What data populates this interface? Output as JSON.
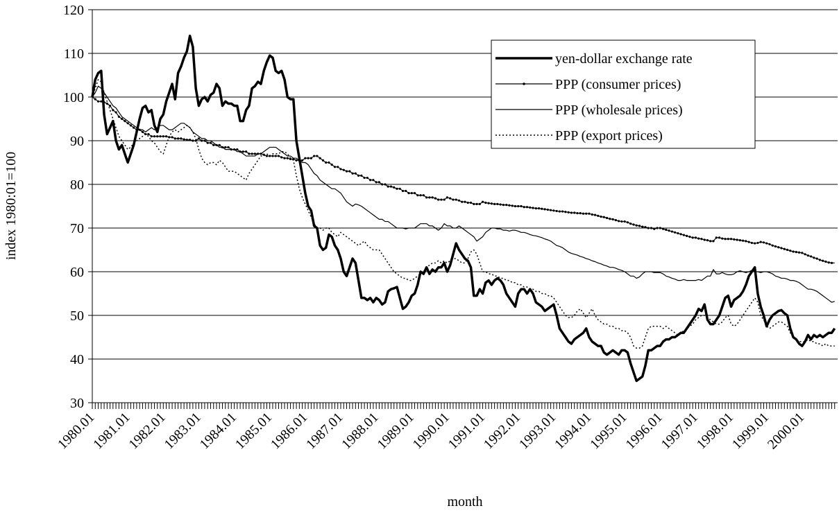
{
  "chart_data": {
    "type": "line",
    "y_label": "index 1980:01=100",
    "x_label": "month",
    "ylim": [
      30,
      120
    ],
    "yticks": [
      30,
      40,
      50,
      60,
      70,
      80,
      90,
      100,
      110,
      120
    ],
    "grid": true,
    "legend": "upper right",
    "categories": [
      "1980.01",
      null,
      null,
      null,
      null,
      null,
      null,
      null,
      null,
      null,
      null,
      null,
      "1981.01",
      null,
      null,
      null,
      null,
      null,
      null,
      null,
      null,
      null,
      null,
      null,
      "1982.01",
      null,
      null,
      null,
      null,
      null,
      null,
      null,
      null,
      null,
      null,
      null,
      "1983.01",
      null,
      null,
      null,
      null,
      null,
      null,
      null,
      null,
      null,
      null,
      null,
      "1984.01",
      null,
      null,
      null,
      null,
      null,
      null,
      null,
      null,
      null,
      null,
      null,
      "1985.01",
      null,
      null,
      null,
      null,
      null,
      null,
      null,
      null,
      null,
      null,
      null,
      "1986.01",
      null,
      null,
      null,
      null,
      null,
      null,
      null,
      null,
      null,
      null,
      null,
      "1987.01",
      null,
      null,
      null,
      null,
      null,
      null,
      null,
      null,
      null,
      null,
      null,
      "1988.01",
      null,
      null,
      null,
      null,
      null,
      null,
      null,
      null,
      null,
      null,
      null,
      "1989.01",
      null,
      null,
      null,
      null,
      null,
      null,
      null,
      null,
      null,
      null,
      null,
      "1990.01",
      null,
      null,
      null,
      null,
      null,
      null,
      null,
      null,
      null,
      null,
      null,
      "1991.01",
      null,
      null,
      null,
      null,
      null,
      null,
      null,
      null,
      null,
      null,
      null,
      "1992.01",
      null,
      null,
      null,
      null,
      null,
      null,
      null,
      null,
      null,
      null,
      null,
      "1993.01",
      null,
      null,
      null,
      null,
      null,
      null,
      null,
      null,
      null,
      null,
      null,
      "1994.01",
      null,
      null,
      null,
      null,
      null,
      null,
      null,
      null,
      null,
      null,
      null,
      "1995.01",
      null,
      null,
      null,
      null,
      null,
      null,
      null,
      null,
      null,
      null,
      null,
      "1996.01",
      null,
      null,
      null,
      null,
      null,
      null,
      null,
      null,
      null,
      null,
      null,
      "1997.01",
      null,
      null,
      null,
      null,
      null,
      null,
      null,
      null,
      null,
      null,
      null,
      "1998.01",
      null,
      null,
      null,
      null,
      null,
      null,
      null,
      null,
      null,
      null,
      null,
      "1999.01",
      null,
      null,
      null,
      null,
      null,
      null,
      null,
      null,
      null,
      null,
      null,
      "2000.01",
      null,
      null,
      null,
      null,
      null,
      null,
      null,
      null,
      null,
      null,
      null
    ],
    "series": [
      {
        "name": "yen-dollar exchange rate",
        "color": "#000000",
        "line_width": 3.5,
        "dash": "none",
        "markers": false,
        "values": [
          100,
          104,
          105.5,
          106,
          96,
          91.5,
          93,
          94.5,
          90,
          88,
          89,
          87,
          85,
          87,
          89,
          92,
          95,
          97.5,
          98,
          96.5,
          97,
          93.5,
          92,
          95,
          96,
          99,
          101,
          103,
          99.5,
          105.5,
          107,
          109,
          110.5,
          114,
          111.5,
          102,
          98,
          99.5,
          100,
          99,
          100.5,
          101,
          103,
          102,
          98,
          99,
          98.5,
          98.5,
          98,
          98,
          94.5,
          94.5,
          97,
          98,
          102,
          102.5,
          103.5,
          103,
          106,
          108,
          109.5,
          109,
          106,
          105.5,
          106,
          104,
          100,
          99.5,
          99.5,
          90,
          86,
          82,
          78,
          75,
          74,
          70.5,
          70,
          66,
          65,
          65.5,
          68.5,
          68,
          66,
          65,
          63,
          60,
          59,
          61,
          63,
          62,
          58,
          54,
          54,
          53.5,
          54,
          53,
          54,
          53.5,
          52.5,
          53,
          55.5,
          56,
          56.2,
          56.5,
          54,
          51.5,
          52,
          53,
          54.5,
          55,
          57,
          60,
          59.5,
          61,
          59.5,
          60.5,
          60,
          61,
          61,
          62,
          60,
          61.5,
          64,
          66.5,
          65,
          64,
          63,
          62.5,
          61,
          54.5,
          54.5,
          56,
          55,
          57.5,
          58,
          57,
          58,
          58.5,
          58,
          57,
          55,
          54,
          53,
          52,
          55,
          56,
          56,
          55,
          56,
          55,
          53,
          52.5,
          52,
          51,
          51.5,
          52,
          52.5,
          50,
          47,
          46,
          45,
          44,
          43.5,
          44.5,
          45,
          45.5,
          46,
          47,
          45,
          44,
          43.5,
          43,
          43,
          41.5,
          41,
          41.5,
          42,
          41.5,
          41,
          42,
          42,
          41.5,
          39,
          37,
          35,
          35.5,
          36,
          38.5,
          42,
          42,
          42.5,
          43,
          43,
          44,
          44.5,
          44.5,
          45,
          45,
          45.5,
          46,
          46,
          47,
          48,
          49,
          50,
          51.5,
          51,
          52.5,
          49,
          48,
          48,
          49,
          50,
          52,
          54,
          54.5,
          52,
          53.5,
          54,
          54.5,
          55.5,
          57,
          59,
          60,
          61,
          55,
          52,
          50,
          47.5,
          49,
          50,
          50.5,
          51,
          51.2,
          50.5,
          50,
          47,
          45,
          44.5,
          43.5,
          43,
          44,
          45.5,
          44.5,
          45.5,
          45,
          45.5,
          45,
          45.5,
          46,
          46,
          47
        ]
      },
      {
        "name": "PPP (consumer prices)",
        "color": "#000000",
        "line_width": 1.2,
        "dash": "none",
        "markers": true,
        "values": [
          100,
          99.5,
          99,
          99,
          98.8,
          98.5,
          98,
          97,
          96.5,
          95.5,
          95,
          94.5,
          94,
          93.5,
          93,
          92.5,
          92.5,
          92,
          91.5,
          91.5,
          91,
          91,
          91,
          91,
          91,
          91,
          90.8,
          90.8,
          90.5,
          90.5,
          90.5,
          90.3,
          90.2,
          90.2,
          90,
          90,
          90.5,
          90,
          90,
          89.5,
          89.5,
          89,
          89,
          89,
          88.5,
          88.5,
          88.5,
          88,
          88,
          88,
          87.5,
          87.5,
          87.5,
          87,
          87,
          87,
          87,
          87,
          86.8,
          86.5,
          86.5,
          86.5,
          86.5,
          86.5,
          86.2,
          86,
          86,
          85.8,
          85.8,
          85.5,
          85.5,
          85.5,
          86,
          86,
          86,
          86.5,
          86.5,
          86,
          85.5,
          85,
          85,
          84.5,
          84,
          84,
          83.5,
          83.3,
          83,
          83,
          82.5,
          82.5,
          82,
          82,
          81.5,
          81.5,
          81,
          81,
          80.5,
          80.5,
          80,
          80,
          79.5,
          79.5,
          79.3,
          79,
          79,
          78.5,
          78.5,
          78,
          78,
          78,
          77.5,
          77.5,
          77.5,
          77,
          77,
          77,
          76.8,
          76.5,
          76.5,
          76.5,
          77,
          76.8,
          76.5,
          76.5,
          76.3,
          76,
          76,
          75.8,
          75.8,
          75.5,
          75.5,
          75.5,
          76,
          75.8,
          75.7,
          75.6,
          75.5,
          75.5,
          75.4,
          75.3,
          75.3,
          75.2,
          75.1,
          75,
          75,
          75,
          74.8,
          74.8,
          74.7,
          74.6,
          74.5,
          74.5,
          74.4,
          74.3,
          74.2,
          74.1,
          74,
          73.9,
          73.8,
          73.8,
          73.7,
          73.6,
          73.5,
          73.5,
          73.4,
          73.4,
          73.3,
          73.3,
          73.3,
          73.1,
          73,
          72.8,
          72.6,
          72.5,
          72.3,
          72.1,
          72,
          71.8,
          71.6,
          71.5,
          71.5,
          71.3,
          71,
          70.8,
          70.6,
          70.5,
          70.3,
          70.2,
          70,
          70,
          69.8,
          70,
          70,
          69.8,
          69.6,
          69.4,
          69.2,
          69,
          68.8,
          68.6,
          68.4,
          68.2,
          68,
          67.8,
          67.8,
          67.6,
          67.5,
          67.3,
          67.2,
          67,
          67,
          67.8,
          67.8,
          67.6,
          67.5,
          67.5,
          67.5,
          67.4,
          67.3,
          67.2,
          67.1,
          67,
          66.8,
          66.6,
          66.5,
          66.6,
          66.8,
          66.7,
          66.5,
          66.3,
          66,
          65.8,
          65.6,
          65.4,
          65.2,
          65,
          64.8,
          64.6,
          64.5,
          64.4,
          64.3,
          64,
          63.7,
          63.5,
          63.2,
          63,
          62.7,
          62.5,
          62.3,
          62.1,
          62,
          62
        ]
      },
      {
        "name": "PPP (wholesale prices)",
        "color": "#000000",
        "line_width": 1.2,
        "dash": "none",
        "markers": false,
        "values": [
          100,
          101,
          102.5,
          102,
          101,
          100,
          99,
          98,
          97.5,
          96.5,
          95.5,
          95,
          94.5,
          94,
          93.5,
          93,
          92.5,
          92.5,
          92,
          92.5,
          93,
          92.5,
          93,
          93.5,
          93.5,
          93,
          92.5,
          92.5,
          93,
          93.5,
          94,
          94,
          93.5,
          93,
          92,
          91.5,
          91,
          90.5,
          90.5,
          90,
          90,
          89.5,
          89,
          88.5,
          88.5,
          88,
          88,
          88,
          88,
          87.5,
          87.5,
          87,
          86.5,
          86.5,
          86.5,
          86.5,
          87,
          87,
          87.5,
          88,
          88.5,
          88.5,
          88.5,
          88,
          87.5,
          87,
          86.5,
          86.5,
          86,
          86,
          85.5,
          85,
          85,
          84.5,
          83.5,
          82.5,
          82,
          81,
          80.5,
          80,
          79.5,
          79,
          79,
          78.5,
          78,
          77,
          76,
          75.5,
          75,
          75.5,
          75.3,
          75,
          74.5,
          74,
          73.5,
          73,
          72.5,
          72,
          72,
          71.5,
          71.5,
          71,
          70.5,
          70,
          70,
          70,
          69.8,
          70,
          70,
          70,
          70.5,
          71,
          71,
          71,
          70.5,
          70.5,
          70,
          69.5,
          70,
          71,
          70.5,
          70.5,
          70,
          70,
          70.5,
          70,
          69.5,
          69,
          68.5,
          68,
          67,
          67.5,
          68,
          69,
          69.5,
          70,
          70,
          69.8,
          69.8,
          69.5,
          69.5,
          69.3,
          69.5,
          69.5,
          69.3,
          69,
          69,
          68.8,
          68.5,
          68.3,
          68.2,
          68,
          67.8,
          67.5,
          67.3,
          67,
          66.5,
          66,
          65.8,
          65.5,
          65,
          64.5,
          64.2,
          64,
          63.8,
          63.5,
          63.3,
          63,
          62.8,
          62.5,
          62.3,
          62,
          61.8,
          61.5,
          61.3,
          61,
          61,
          60.8,
          60.5,
          60.3,
          60,
          59.5,
          59,
          59,
          58.5,
          58.8,
          59.5,
          60,
          60,
          60,
          59.8,
          59.8,
          59.8,
          59.5,
          59,
          58.8,
          58.5,
          58.3,
          58,
          58,
          58.2,
          58,
          58,
          58,
          58,
          58.2,
          58,
          58.5,
          59,
          59,
          60.5,
          59.5,
          59.5,
          59.8,
          59.5,
          59.3,
          59.3,
          59.5,
          60,
          60.2,
          60,
          59.8,
          60,
          60.3,
          60,
          60,
          59.8,
          60,
          60,
          59.8,
          59.5,
          59,
          58.8,
          58.5,
          58.5,
          58.3,
          58,
          58,
          57.8,
          57.5,
          57,
          56.5,
          56,
          56,
          55.8,
          55.5,
          55,
          54.5,
          54,
          53.5,
          53,
          53.2
        ]
      },
      {
        "name": "PPP (export prices)",
        "color": "#000000",
        "line_width": 1.5,
        "dash": "2 3",
        "markers": false,
        "values": [
          100,
          102,
          104,
          103.5,
          101,
          99,
          97,
          95,
          93,
          91,
          90,
          89,
          88,
          88.5,
          89.5,
          90,
          90.5,
          91,
          91.5,
          91,
          90,
          89.5,
          88.5,
          87.5,
          87,
          89,
          91,
          92,
          92.5,
          92,
          92.5,
          93,
          93.5,
          93,
          92,
          90.5,
          88,
          86,
          85,
          84.5,
          85,
          85,
          84.5,
          85.5,
          85,
          84,
          83,
          83,
          83,
          82.5,
          82,
          81.5,
          81,
          82.5,
          83.5,
          84.5,
          85.5,
          86.5,
          86.5,
          87,
          86.5,
          87,
          87,
          87,
          87.5,
          87.5,
          87,
          86,
          85.5,
          82,
          79,
          77,
          75.5,
          74,
          72.5,
          71,
          70,
          70,
          69.5,
          70,
          70,
          69,
          68.5,
          68,
          69,
          68.5,
          68,
          67.5,
          67,
          66.5,
          66,
          66.5,
          67,
          66,
          65.5,
          65,
          65,
          65,
          64,
          63,
          62,
          61,
          60,
          59.5,
          59,
          58.5,
          58.5,
          58,
          58,
          58.5,
          59,
          59.5,
          60,
          61,
          61.5,
          62,
          62,
          62.5,
          62,
          62.5,
          62,
          62.5,
          63,
          63,
          62.5,
          62,
          62,
          63,
          64.5,
          65,
          64,
          62,
          60,
          60,
          59.5,
          59.5,
          59,
          59,
          58.5,
          58.5,
          58,
          58,
          57.5,
          57.5,
          57,
          57,
          56.5,
          56.5,
          56,
          56,
          55.5,
          55.5,
          55,
          55,
          54.5,
          54.5,
          54,
          53,
          52,
          51,
          50,
          49.5,
          49.5,
          50,
          51,
          51.5,
          50.5,
          49.5,
          50.5,
          51.5,
          50,
          49,
          48.5,
          48,
          48,
          47.5,
          47.5,
          47,
          47,
          46.5,
          46.5,
          46,
          45,
          43,
          42.5,
          42.5,
          43,
          45,
          47,
          47.5,
          47.5,
          47.5,
          47.5,
          47,
          47.5,
          47,
          46.5,
          46,
          45.5,
          46,
          46.5,
          47,
          47.5,
          48,
          49,
          49.5,
          50,
          50,
          49.5,
          49,
          48.5,
          48,
          48,
          48.5,
          49.5,
          50,
          48,
          47.5,
          48,
          49,
          50,
          51,
          52,
          53,
          54,
          53,
          50,
          49,
          47.5,
          47,
          47.5,
          48,
          48.5,
          48.5,
          48,
          47.5,
          46,
          45,
          44.5,
          44,
          44,
          44,
          44.5,
          44,
          44,
          43.5,
          43.5,
          43,
          43.5,
          43,
          43,
          43
        ]
      }
    ]
  }
}
